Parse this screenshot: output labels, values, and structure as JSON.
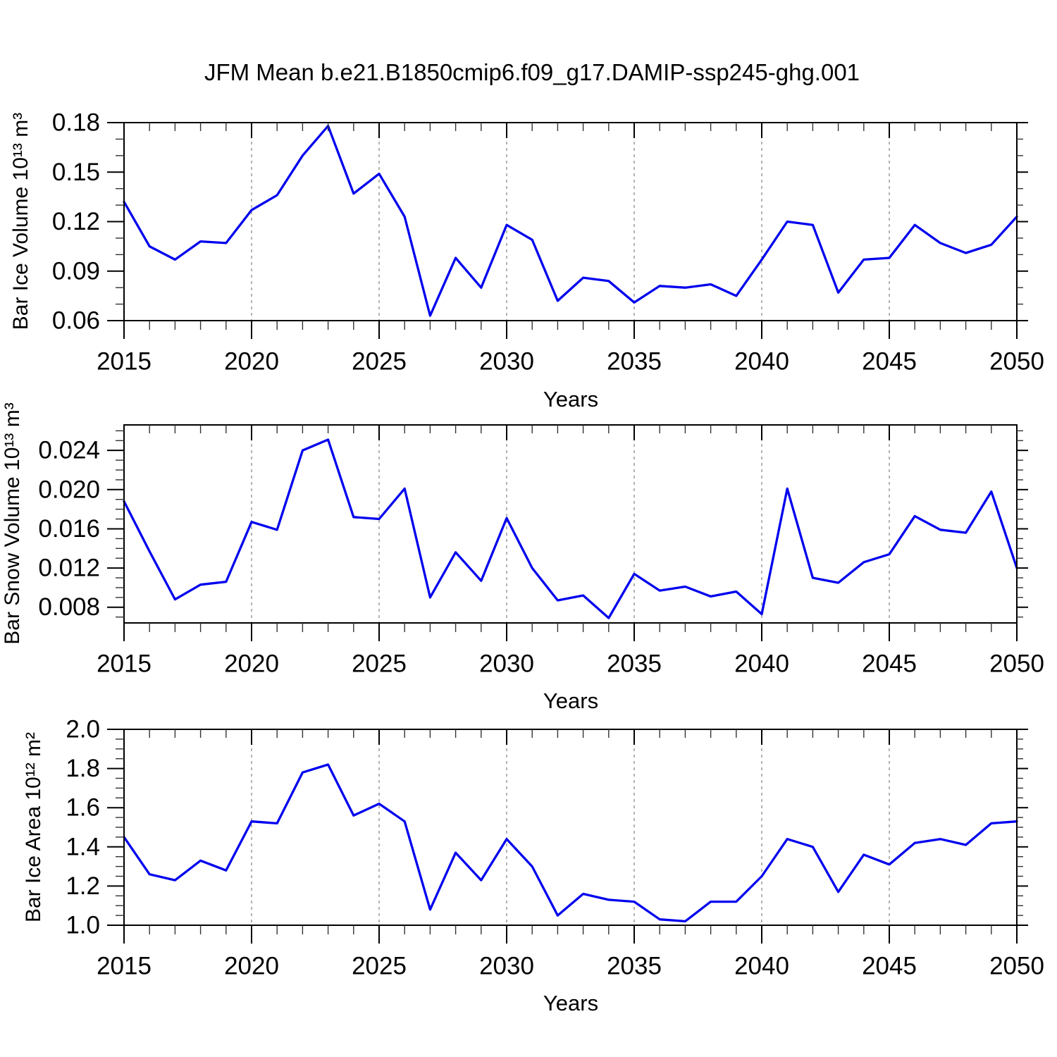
{
  "title": "JFM Mean b.e21.B1850cmip6.f09_g17.DAMIP-ssp245-ghg.001",
  "colors": {
    "line": "#0000EE",
    "grid": "#8A8A8A",
    "frame": "#000000",
    "minor_tick": "#333333"
  },
  "chart_data": [
    {
      "type": "line",
      "name": "bar-ice-volume",
      "ylabel": "Bar Ice Volume 10¹³ m³",
      "xlabel": "Years",
      "x_start": 2015,
      "x_end": 2050,
      "x_major_ticks": [
        2015,
        2020,
        2025,
        2030,
        2035,
        2040,
        2045,
        2050
      ],
      "grid_years": [
        2020,
        2025,
        2030,
        2035,
        2040,
        2045
      ],
      "ylim": [
        0.06,
        0.18
      ],
      "y_major_values": [
        0.06,
        0.09,
        0.12,
        0.15,
        0.18
      ],
      "y_major_labels": [
        "0.06",
        "0.09",
        "0.12",
        "0.15",
        "0.18"
      ],
      "y_minor_step": 0.01,
      "values": [
        0.132,
        0.105,
        0.097,
        0.108,
        0.107,
        0.127,
        0.136,
        0.16,
        0.178,
        0.137,
        0.149,
        0.123,
        0.063,
        0.098,
        0.08,
        0.118,
        0.109,
        0.072,
        0.086,
        0.084,
        0.071,
        0.081,
        0.08,
        0.082,
        0.075,
        0.097,
        0.12,
        0.118,
        0.077,
        0.097,
        0.098,
        0.118,
        0.107,
        0.101,
        0.106,
        0.123
      ]
    },
    {
      "type": "line",
      "name": "bar-snow-volume",
      "ylabel": "Bar Snow Volume 10¹³ m³",
      "xlabel": "Years",
      "x_start": 2015,
      "x_end": 2050,
      "x_major_ticks": [
        2015,
        2020,
        2025,
        2030,
        2035,
        2040,
        2045,
        2050
      ],
      "grid_years": [
        2020,
        2025,
        2030,
        2035,
        2040,
        2045
      ],
      "ylim": [
        0.0064,
        0.0266
      ],
      "y_major_values": [
        0.008,
        0.012,
        0.016,
        0.02,
        0.024
      ],
      "y_major_labels": [
        "0.008",
        "0.012",
        "0.016",
        "0.020",
        "0.024"
      ],
      "y_minor_step": 0.001,
      "values": [
        0.0188,
        0.0137,
        0.0088,
        0.0103,
        0.0106,
        0.0167,
        0.0159,
        0.024,
        0.0251,
        0.0172,
        0.017,
        0.0201,
        0.009,
        0.0136,
        0.0107,
        0.0171,
        0.012,
        0.0087,
        0.0092,
        0.0069,
        0.0114,
        0.0097,
        0.0101,
        0.0091,
        0.0096,
        0.0073,
        0.0201,
        0.011,
        0.0105,
        0.0126,
        0.0134,
        0.0173,
        0.0159,
        0.0156,
        0.0198,
        0.012
      ]
    },
    {
      "type": "line",
      "name": "bar-ice-area",
      "ylabel": "Bar Ice Area 10¹² m²",
      "xlabel": "Years",
      "x_start": 2015,
      "x_end": 2050,
      "x_major_ticks": [
        2015,
        2020,
        2025,
        2030,
        2035,
        2040,
        2045,
        2050
      ],
      "grid_years": [
        2020,
        2025,
        2030,
        2035,
        2040,
        2045
      ],
      "ylim": [
        1.0,
        2.0
      ],
      "y_major_values": [
        1.0,
        1.2,
        1.4,
        1.6,
        1.8,
        2.0
      ],
      "y_major_labels": [
        "1.0",
        "1.2",
        "1.4",
        "1.6",
        "1.8",
        "2.0"
      ],
      "y_minor_step": 0.05,
      "values": [
        1.45,
        1.26,
        1.23,
        1.33,
        1.28,
        1.53,
        1.52,
        1.78,
        1.82,
        1.56,
        1.62,
        1.53,
        1.08,
        1.37,
        1.23,
        1.44,
        1.3,
        1.05,
        1.16,
        1.13,
        1.12,
        1.03,
        1.02,
        1.12,
        1.12,
        1.25,
        1.44,
        1.4,
        1.17,
        1.36,
        1.31,
        1.42,
        1.44,
        1.41,
        1.52,
        1.53
      ]
    }
  ]
}
